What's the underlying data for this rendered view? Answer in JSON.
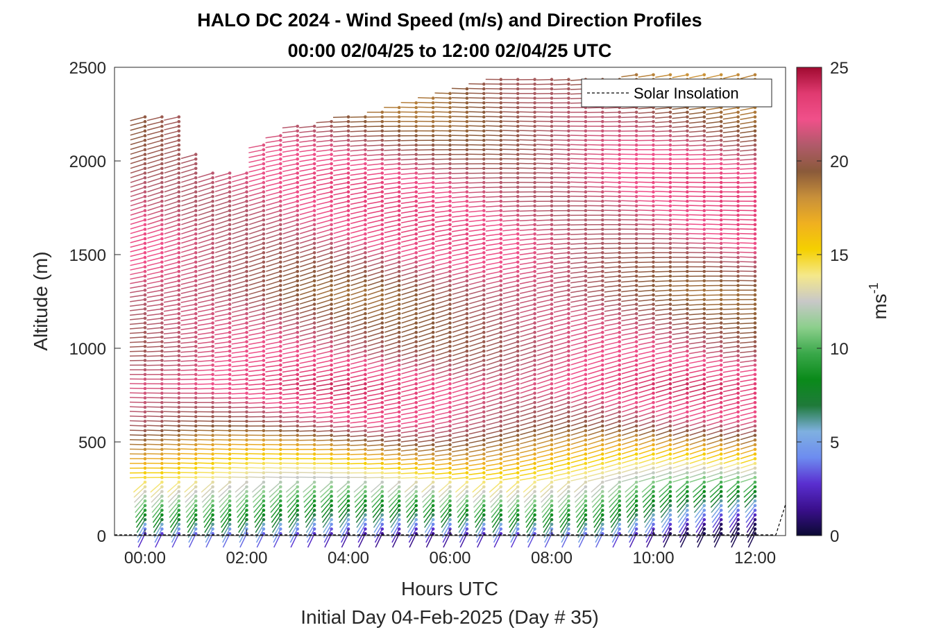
{
  "chart_data": {
    "type": "wind-barb-profile",
    "title": "HALO DC 2024 - Wind Speed (m/s) and Direction Profiles",
    "subtitle": "00:00 02/04/25 to 12:00 02/04/25  UTC",
    "xlabel": "Hours UTC",
    "footer": "Initial Day 04-Feb-2025 (Day # 35)",
    "ylabel": "Altitude (m)",
    "xlim": [
      -0.6,
      12.6
    ],
    "ylim": [
      0,
      2500
    ],
    "x_ticks": [
      {
        "value": 0,
        "label": "00:00"
      },
      {
        "value": 2,
        "label": "02:00"
      },
      {
        "value": 4,
        "label": "04:00"
      },
      {
        "value": 6,
        "label": "06:00"
      },
      {
        "value": 8,
        "label": "08:00"
      },
      {
        "value": 10,
        "label": "10:00"
      },
      {
        "value": 12,
        "label": "12:00"
      }
    ],
    "y_ticks": [
      {
        "value": 0,
        "label": "0"
      },
      {
        "value": 500,
        "label": "500"
      },
      {
        "value": 1000,
        "label": "1000"
      },
      {
        "value": 1500,
        "label": "1500"
      },
      {
        "value": 2000,
        "label": "2000"
      },
      {
        "value": 2500,
        "label": "2500"
      }
    ],
    "colorbar": {
      "label": "ms",
      "label_exponent": "-1",
      "range": [
        0,
        25
      ],
      "ticks": [
        {
          "value": 0,
          "label": "0"
        },
        {
          "value": 5,
          "label": "5"
        },
        {
          "value": 10,
          "label": "10"
        },
        {
          "value": 15,
          "label": "15"
        },
        {
          "value": 20,
          "label": "20"
        },
        {
          "value": 25,
          "label": "25"
        }
      ],
      "colors": [
        "#0b0a33",
        "#3a0f8c",
        "#5a2fd0",
        "#6d8cf0",
        "#7fb0e0",
        "#1f7a3a",
        "#0a8a1a",
        "#3aa84a",
        "#8ccf8c",
        "#c8c8c8",
        "#f5e88a",
        "#f5d000",
        "#f0b020",
        "#c8903a",
        "#8a5a3a",
        "#b05a6a",
        "#f0508a",
        "#e03a70",
        "#a00a30"
      ]
    },
    "legend": {
      "label": "Solar Insolation",
      "position": "top-right",
      "style": "dashed"
    },
    "grid": false,
    "profile_time_range_hours": [
      0,
      12.1
    ],
    "profile_interval_minutes": 20,
    "vertical_resolution_m": 25,
    "profile_top_m": [
      {
        "hour": 0.0,
        "top": 2235
      },
      {
        "hour": 0.33,
        "top": 2235
      },
      {
        "hour": 0.67,
        "top": 2235
      },
      {
        "hour": 1.0,
        "top": 2045
      },
      {
        "hour": 1.33,
        "top": 1960
      },
      {
        "hour": 2.0,
        "top": 1950
      },
      {
        "hour": 2.33,
        "top": 2085
      },
      {
        "hour": 3.0,
        "top": 2185
      },
      {
        "hour": 4.0,
        "top": 2240
      },
      {
        "hour": 5.0,
        "top": 2285
      },
      {
        "hour": 6.0,
        "top": 2380
      },
      {
        "hour": 7.0,
        "top": 2440
      },
      {
        "hour": 8.0,
        "top": 2440
      },
      {
        "hour": 9.0,
        "top": 2450
      },
      {
        "hour": 10.0,
        "top": 2470
      },
      {
        "hour": 11.0,
        "top": 2480
      },
      {
        "hour": 12.1,
        "top": 2480
      }
    ],
    "speed_profile_ms": [
      {
        "altitude": 0,
        "speed": 2
      },
      {
        "altitude": 100,
        "speed": 7
      },
      {
        "altitude": 250,
        "speed": 12
      },
      {
        "altitude": 400,
        "speed": 16
      },
      {
        "altitude": 600,
        "speed": 21
      },
      {
        "altitude": 800,
        "speed": 23
      },
      {
        "altitude": 1000,
        "speed": 21
      },
      {
        "altitude": 1300,
        "speed": 20
      },
      {
        "altitude": 1600,
        "speed": 22
      },
      {
        "altitude": 1900,
        "speed": 22
      },
      {
        "altitude": 2200,
        "speed": 20
      },
      {
        "altitude": 2500,
        "speed": 19
      }
    ]
  }
}
